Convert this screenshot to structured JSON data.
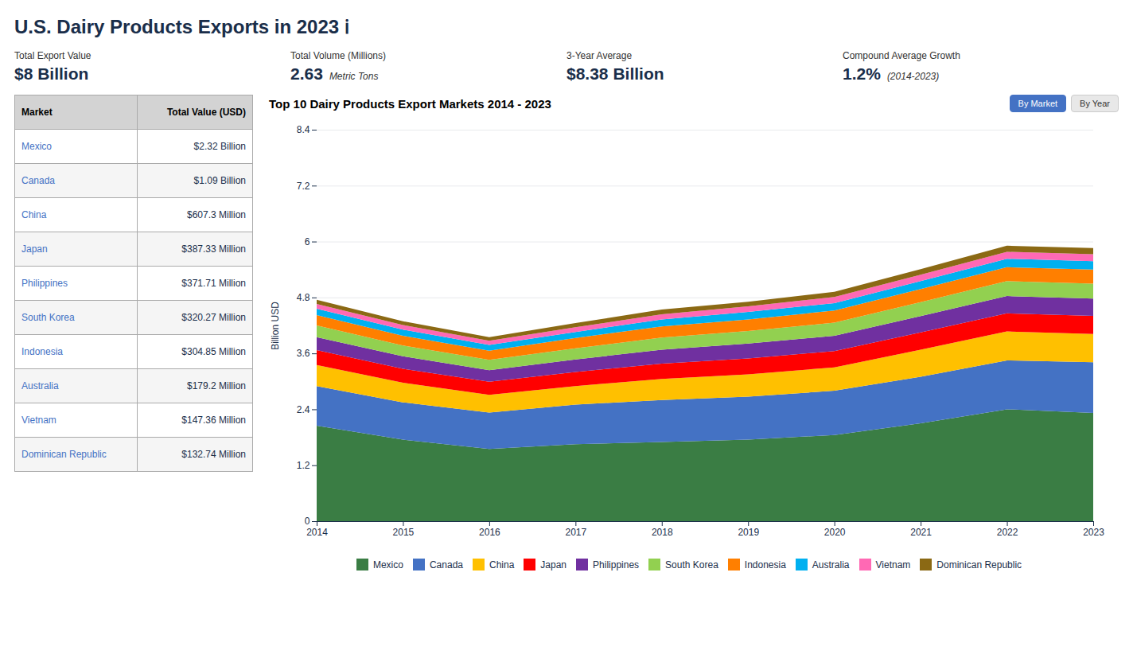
{
  "title": "U.S. Dairy Products Exports in 2023  ℹ",
  "stats": [
    {
      "label": "Total Export Value",
      "value": "$8 Billion"
    },
    {
      "label": "Total Volume (Millions)",
      "value": "2.63",
      "note": "Metric Tons"
    },
    {
      "label": "3-Year Average",
      "value": "$8.38 Billion"
    },
    {
      "label": "Compound Average Growth",
      "value": "1.2%",
      "note": "(2014-2023)"
    }
  ],
  "table": {
    "headers": [
      "Market",
      "Total Value (USD)"
    ],
    "rows": [
      [
        "Mexico",
        "$2.32 Billion"
      ],
      [
        "Canada",
        "$1.09 Billion"
      ],
      [
        "China",
        "$607.3 Million"
      ],
      [
        "Japan",
        "$387.33 Million"
      ],
      [
        "Philippines",
        "$371.71 Million"
      ],
      [
        "South Korea",
        "$320.27 Million"
      ],
      [
        "Indonesia",
        "$304.85 Million"
      ],
      [
        "Australia",
        "$179.2 Million"
      ],
      [
        "Vietnam",
        "$147.36 Million"
      ],
      [
        "Dominican Republic",
        "$132.74 Million"
      ]
    ]
  },
  "buttons": [
    "By Market",
    "By Year"
  ],
  "chart_data": {
    "type": "area",
    "stacked": true,
    "title": "Top 10 Dairy Products Export Markets 2014 - 2023",
    "y_label": "Billion USD",
    "x": [
      2014,
      2015,
      2016,
      2017,
      2018,
      2019,
      2020,
      2021,
      2022,
      2023
    ],
    "xlim": [
      2014,
      2023
    ],
    "xticks": [
      2014,
      2015,
      2016,
      2017,
      2018,
      2019,
      2020,
      2021,
      2022,
      2023
    ],
    "ylim": [
      0,
      8.4
    ],
    "yticks": [
      0,
      1.2,
      2.4,
      3.6,
      4.8,
      6,
      7.2,
      8.4
    ],
    "grid": "y",
    "legend": "bottom",
    "series": [
      {
        "name": "Mexico",
        "color": "#3A7D44",
        "values": [
          2.05,
          1.75,
          1.55,
          1.65,
          1.7,
          1.75,
          1.85,
          2.1,
          2.4,
          2.32
        ]
      },
      {
        "name": "Canada",
        "color": "#4472C4",
        "values": [
          0.85,
          0.8,
          0.78,
          0.85,
          0.9,
          0.92,
          0.95,
          1.0,
          1.05,
          1.09
        ]
      },
      {
        "name": "China",
        "color": "#FFC000",
        "values": [
          0.45,
          0.42,
          0.38,
          0.4,
          0.45,
          0.48,
          0.5,
          0.58,
          0.62,
          0.607
        ]
      },
      {
        "name": "Japan",
        "color": "#FF0000",
        "values": [
          0.32,
          0.3,
          0.28,
          0.3,
          0.33,
          0.34,
          0.35,
          0.37,
          0.39,
          0.387
        ]
      },
      {
        "name": "Philippines",
        "color": "#7030A0",
        "values": [
          0.28,
          0.27,
          0.25,
          0.27,
          0.3,
          0.32,
          0.33,
          0.35,
          0.37,
          0.372
        ]
      },
      {
        "name": "South Korea",
        "color": "#92D050",
        "values": [
          0.25,
          0.23,
          0.22,
          0.24,
          0.26,
          0.27,
          0.28,
          0.3,
          0.32,
          0.32
        ]
      },
      {
        "name": "Indonesia",
        "color": "#FF7F00",
        "values": [
          0.22,
          0.21,
          0.2,
          0.22,
          0.24,
          0.25,
          0.26,
          0.28,
          0.3,
          0.305
        ]
      },
      {
        "name": "Australia",
        "color": "#00B0F0",
        "values": [
          0.14,
          0.13,
          0.12,
          0.13,
          0.15,
          0.16,
          0.16,
          0.17,
          0.18,
          0.179
        ]
      },
      {
        "name": "Vietnam",
        "color": "#FF69B4",
        "values": [
          0.1,
          0.1,
          0.09,
          0.1,
          0.11,
          0.12,
          0.13,
          0.14,
          0.15,
          0.147
        ]
      },
      {
        "name": "Dominican Republic",
        "color": "#8B6914",
        "values": [
          0.09,
          0.08,
          0.08,
          0.09,
          0.1,
          0.1,
          0.11,
          0.12,
          0.13,
          0.133
        ]
      }
    ]
  }
}
